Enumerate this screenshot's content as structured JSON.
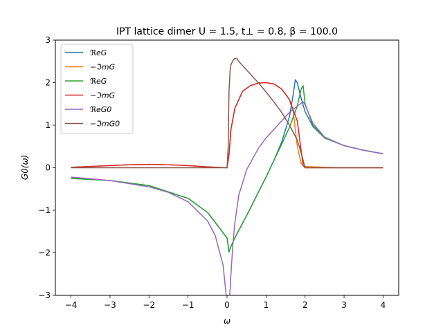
{
  "chart_data": {
    "type": "line",
    "title": "IPT lattice dimer U = 1.5, t⊥ = 0.8, β = 100.0",
    "xlabel": "ω",
    "ylabel": "G0(ω)",
    "xlim": [
      -4.4,
      4.4
    ],
    "ylim": [
      -3,
      3
    ],
    "xticks": [
      -4,
      -3,
      -2,
      -1,
      0,
      1,
      2,
      3,
      4
    ],
    "yticks": [
      -3,
      -2,
      -1,
      0,
      1,
      2,
      3
    ],
    "xtick_labels": [
      "−4",
      "−3",
      "−2",
      "−1",
      "0",
      "1",
      "2",
      "3",
      "4"
    ],
    "ytick_labels": [
      "−3",
      "−2",
      "−1",
      "0",
      "1",
      "2",
      "3"
    ],
    "grid": false,
    "legend_position": "top-left",
    "series": [
      {
        "name": "ℜeG",
        "color": "#1f77b4",
        "x": [
          -4.0,
          -3.0,
          -2.0,
          -1.0,
          -0.5,
          0.0,
          0.05,
          0.1,
          0.2,
          0.4,
          0.6,
          0.8,
          1.0,
          1.2,
          1.4,
          1.6,
          1.7,
          1.75,
          1.8,
          1.9,
          2.0,
          2.2,
          2.5,
          3.0,
          3.5,
          4.0
        ],
        "y": [
          -0.25,
          -0.3,
          -0.42,
          -0.72,
          -1.05,
          -1.65,
          -1.98,
          -1.85,
          -1.65,
          -1.3,
          -0.95,
          -0.58,
          -0.22,
          0.17,
          0.6,
          1.2,
          1.75,
          2.07,
          2.0,
          1.63,
          1.32,
          0.97,
          0.7,
          0.52,
          0.41,
          0.33
        ]
      },
      {
        "name": "−ℑmG",
        "color": "#ff7f0e",
        "x": [
          -4.0,
          -3.5,
          -3.0,
          -2.5,
          -2.0,
          -1.5,
          -1.0,
          -0.5,
          0.0,
          0.05,
          0.1,
          0.2,
          0.4,
          0.6,
          0.8,
          1.0,
          1.2,
          1.4,
          1.6,
          1.7,
          1.8,
          1.9,
          2.0,
          2.5,
          3.0,
          4.0
        ],
        "y": [
          0.01,
          0.03,
          0.05,
          0.07,
          0.08,
          0.07,
          0.05,
          0.02,
          0.0,
          0.3,
          0.9,
          1.4,
          1.8,
          1.93,
          1.99,
          2.0,
          1.97,
          1.85,
          1.6,
          1.3,
          0.5,
          0.1,
          0.03,
          0.01,
          0.0,
          0.0
        ]
      },
      {
        "name": "ℜeG",
        "color": "#2ca02c",
        "x": [
          -4.0,
          -3.0,
          -2.0,
          -1.0,
          -0.5,
          0.0,
          0.05,
          0.1,
          0.2,
          0.4,
          0.6,
          0.8,
          1.0,
          1.2,
          1.4,
          1.6,
          1.8,
          1.9,
          1.95,
          2.0,
          2.2,
          2.5,
          3.0,
          3.5,
          4.0
        ],
        "y": [
          -0.25,
          -0.3,
          -0.42,
          -0.72,
          -1.05,
          -1.65,
          -1.98,
          -1.85,
          -1.65,
          -1.3,
          -0.95,
          -0.58,
          -0.22,
          0.17,
          0.55,
          0.95,
          1.45,
          1.85,
          1.93,
          1.5,
          1.0,
          0.7,
          0.52,
          0.41,
          0.33
        ]
      },
      {
        "name": "−ℑmG",
        "color": "#d62728",
        "x": [
          -4.0,
          -3.5,
          -3.0,
          -2.5,
          -2.0,
          -1.5,
          -1.0,
          -0.5,
          0.0,
          0.05,
          0.1,
          0.2,
          0.4,
          0.6,
          0.8,
          1.0,
          1.2,
          1.4,
          1.6,
          1.8,
          1.9,
          1.95,
          2.0,
          2.5,
          3.0,
          4.0
        ],
        "y": [
          0.01,
          0.03,
          0.05,
          0.07,
          0.08,
          0.07,
          0.05,
          0.02,
          0.0,
          0.3,
          0.9,
          1.4,
          1.8,
          1.93,
          1.99,
          2.0,
          1.97,
          1.85,
          1.6,
          1.1,
          0.4,
          0.05,
          0.0,
          0.0,
          0.0,
          0.0
        ]
      },
      {
        "name": "ℜeG0",
        "color": "#9467bd",
        "x": [
          -4.0,
          -3.0,
          -2.0,
          -1.5,
          -1.0,
          -0.5,
          -0.3,
          -0.1,
          0.0,
          0.05,
          0.08,
          0.1,
          0.15,
          0.2,
          0.3,
          0.5,
          0.8,
          1.0,
          1.3,
          1.6,
          1.8,
          1.95,
          2.0,
          2.2,
          2.5,
          3.0,
          3.5,
          4.0
        ],
        "y": [
          -0.22,
          -0.3,
          -0.45,
          -0.58,
          -0.8,
          -1.25,
          -1.6,
          -2.3,
          -3.2,
          -3.2,
          -2.85,
          -2.5,
          -1.8,
          -1.3,
          -0.65,
          -0.05,
          0.45,
          0.7,
          1.0,
          1.3,
          1.45,
          1.55,
          1.48,
          1.05,
          0.72,
          0.52,
          0.41,
          0.33
        ]
      },
      {
        "name": "−ℑmG0",
        "color": "#8c564b",
        "x": [
          -4.0,
          -3.0,
          -2.0,
          -1.0,
          0.0,
          0.03,
          0.05,
          0.08,
          0.1,
          0.15,
          0.2,
          0.25,
          0.3,
          0.4,
          0.6,
          0.8,
          1.0,
          1.2,
          1.4,
          1.6,
          1.8,
          1.9,
          2.0,
          2.5,
          3.0,
          4.0
        ],
        "y": [
          0.0,
          0.0,
          0.0,
          0.0,
          0.0,
          0.5,
          1.8,
          2.3,
          2.42,
          2.52,
          2.57,
          2.57,
          2.5,
          2.4,
          2.2,
          2.0,
          1.78,
          1.55,
          1.3,
          1.0,
          0.65,
          0.35,
          0.0,
          0.0,
          0.0,
          0.0
        ]
      }
    ]
  }
}
